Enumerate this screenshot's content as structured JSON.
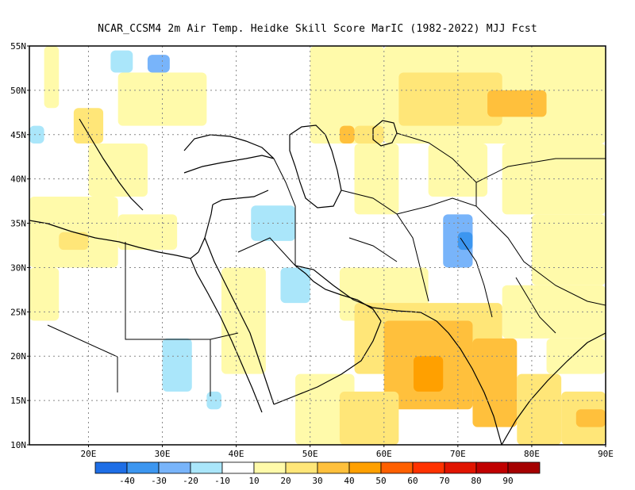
{
  "title": "NCAR_CCSM4  2m Air Temp. Heidke Skill Score MarIC (1982-2022) MJJ Fcst",
  "map": {
    "lon_range": [
      12,
      90
    ],
    "lat_range": [
      10,
      55
    ],
    "lat_ticks": [
      {
        "value": 55,
        "label": "55N"
      },
      {
        "value": 50,
        "label": "50N"
      },
      {
        "value": 45,
        "label": "45N"
      },
      {
        "value": 40,
        "label": "40N"
      },
      {
        "value": 35,
        "label": "35N"
      },
      {
        "value": 30,
        "label": "30N"
      },
      {
        "value": 25,
        "label": "25N"
      },
      {
        "value": 20,
        "label": "20N"
      },
      {
        "value": 15,
        "label": "15N"
      },
      {
        "value": 10,
        "label": "10N"
      }
    ],
    "lon_ticks": [
      {
        "value": 20,
        "label": "20E"
      },
      {
        "value": 30,
        "label": "30E"
      },
      {
        "value": 40,
        "label": "40E"
      },
      {
        "value": 50,
        "label": "50E"
      },
      {
        "value": 60,
        "label": "60E"
      },
      {
        "value": 70,
        "label": "70E"
      },
      {
        "value": 80,
        "label": "80E"
      },
      {
        "value": 90,
        "label": "90E"
      }
    ],
    "grid": true,
    "regions": [
      {
        "lon": [
          14,
          16
        ],
        "lat": [
          48,
          55
        ],
        "level": 20
      },
      {
        "lon": [
          18,
          22
        ],
        "lat": [
          44,
          48
        ],
        "level": 30
      },
      {
        "lon": [
          24,
          36
        ],
        "lat": [
          46,
          52
        ],
        "level": 20
      },
      {
        "lon": [
          28,
          31
        ],
        "lat": [
          52,
          54
        ],
        "level": -20
      },
      {
        "lon": [
          23,
          26
        ],
        "lat": [
          52,
          54.5
        ],
        "level": -10
      },
      {
        "lon": [
          20,
          28
        ],
        "lat": [
          38,
          44
        ],
        "level": 20
      },
      {
        "lon": [
          12,
          24
        ],
        "lat": [
          30,
          38
        ],
        "level": 20
      },
      {
        "lon": [
          16,
          20
        ],
        "lat": [
          32,
          34
        ],
        "level": 30
      },
      {
        "lon": [
          12,
          16
        ],
        "lat": [
          24,
          30
        ],
        "level": 20
      },
      {
        "lon": [
          24,
          32
        ],
        "lat": [
          32,
          36
        ],
        "level": 20
      },
      {
        "lon": [
          42,
          48
        ],
        "lat": [
          33,
          37
        ],
        "level": -10
      },
      {
        "lon": [
          46,
          50
        ],
        "lat": [
          26,
          30
        ],
        "level": -10
      },
      {
        "lon": [
          38,
          44
        ],
        "lat": [
          18,
          30
        ],
        "level": 20
      },
      {
        "lon": [
          48,
          56
        ],
        "lat": [
          10,
          18
        ],
        "level": 20
      },
      {
        "lon": [
          56,
          62
        ],
        "lat": [
          36,
          44
        ],
        "level": 20
      },
      {
        "lon": [
          50,
          60
        ],
        "lat": [
          44,
          55
        ],
        "level": 20
      },
      {
        "lon": [
          60,
          90
        ],
        "lat": [
          44,
          55
        ],
        "level": 20
      },
      {
        "lon": [
          62,
          76
        ],
        "lat": [
          46,
          52
        ],
        "level": 30
      },
      {
        "lon": [
          74,
          82
        ],
        "lat": [
          47,
          50
        ],
        "level": 40
      },
      {
        "lon": [
          56,
          60
        ],
        "lat": [
          44,
          46
        ],
        "level": 30
      },
      {
        "lon": [
          66,
          74
        ],
        "lat": [
          38,
          44
        ],
        "level": 20
      },
      {
        "lon": [
          76,
          90
        ],
        "lat": [
          36,
          44
        ],
        "level": 20
      },
      {
        "lon": [
          80,
          90
        ],
        "lat": [
          28,
          36
        ],
        "level": 20
      },
      {
        "lon": [
          76,
          90
        ],
        "lat": [
          22,
          28
        ],
        "level": 10
      },
      {
        "lon": [
          82,
          90
        ],
        "lat": [
          18,
          22
        ],
        "level": 20
      },
      {
        "lon": [
          54,
          66
        ],
        "lat": [
          24,
          30
        ],
        "level": 20
      },
      {
        "lon": [
          56,
          76
        ],
        "lat": [
          18,
          26
        ],
        "level": 30
      },
      {
        "lon": [
          60,
          72
        ],
        "lat": [
          14,
          24
        ],
        "level": 40
      },
      {
        "lon": [
          64,
          68
        ],
        "lat": [
          16,
          20
        ],
        "level": 50
      },
      {
        "lon": [
          54,
          62
        ],
        "lat": [
          10,
          16
        ],
        "level": 30
      },
      {
        "lon": [
          72,
          78
        ],
        "lat": [
          12,
          22
        ],
        "level": 40
      },
      {
        "lon": [
          78,
          84
        ],
        "lat": [
          10,
          18
        ],
        "level": 30
      },
      {
        "lon": [
          84,
          90
        ],
        "lat": [
          10,
          16
        ],
        "level": 30
      },
      {
        "lon": [
          86,
          90
        ],
        "lat": [
          12,
          14
        ],
        "level": 40
      },
      {
        "lon": [
          68,
          72
        ],
        "lat": [
          30,
          36
        ],
        "level": -20
      },
      {
        "lon": [
          70,
          72
        ],
        "lat": [
          32,
          34
        ],
        "level": -30
      },
      {
        "lon": [
          30,
          34
        ],
        "lat": [
          16,
          22
        ],
        "level": -10
      },
      {
        "lon": [
          36,
          38
        ],
        "lat": [
          14,
          16
        ],
        "level": -10
      },
      {
        "lon": [
          12,
          14
        ],
        "lat": [
          44,
          46
        ],
        "level": -10
      },
      {
        "lon": [
          54,
          56
        ],
        "lat": [
          44,
          46
        ],
        "level": 40
      }
    ]
  },
  "colorbar": {
    "bins": [
      {
        "color": "#1e6ee6"
      },
      {
        "color": "#3c96f0"
      },
      {
        "color": "#78b4fa"
      },
      {
        "color": "#aae6fa"
      },
      {
        "color": "#ffffff"
      },
      {
        "color": "#fffaaa"
      },
      {
        "color": "#ffe678"
      },
      {
        "color": "#ffc03c"
      },
      {
        "color": "#ffa000"
      },
      {
        "color": "#ff6000"
      },
      {
        "color": "#ff3200"
      },
      {
        "color": "#e11400"
      },
      {
        "color": "#c00000"
      },
      {
        "color": "#a50000"
      }
    ],
    "labels": [
      "-40",
      "-30",
      "-20",
      "-10",
      "10",
      "20",
      "30",
      "40",
      "50",
      "60",
      "70",
      "80",
      "90"
    ]
  }
}
